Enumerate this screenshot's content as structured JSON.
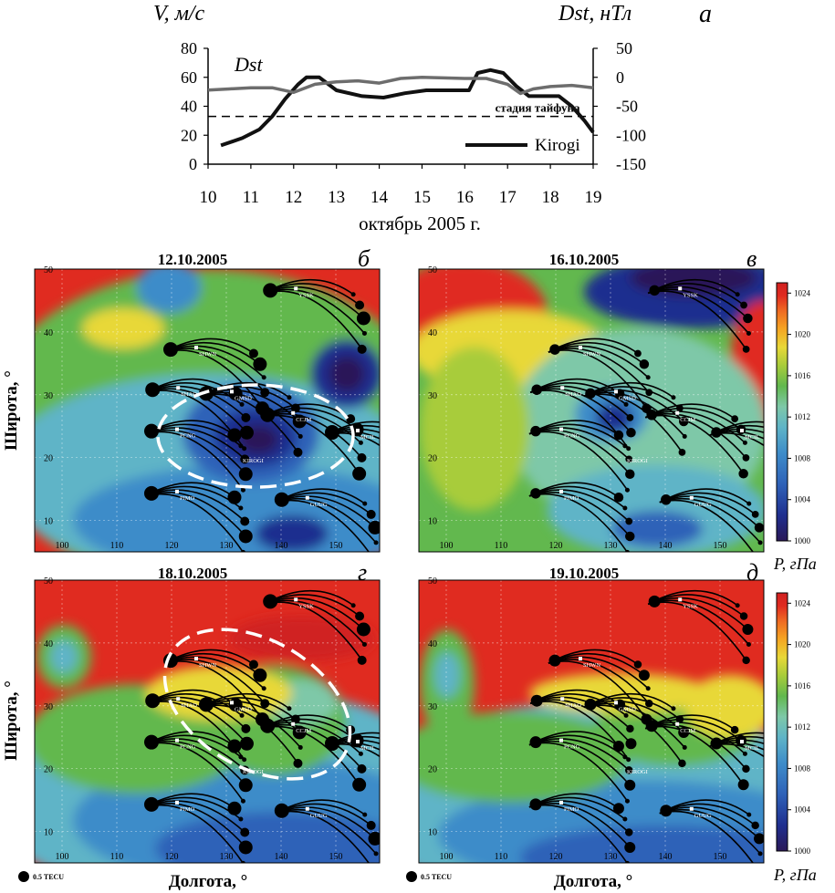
{
  "chart_data": [
    {
      "type": "line",
      "panel_letter": "а",
      "left_axis_title": "V, м/с",
      "right_axis_title": "Dst, нТл",
      "xlabel": "октябрь 2005 г.",
      "x_ticks": [
        "10",
        "11",
        "12",
        "13",
        "14",
        "15",
        "16",
        "17",
        "18",
        "19"
      ],
      "left_ticks": [
        "0",
        "20",
        "40",
        "60",
        "80"
      ],
      "right_ticks": [
        "-150",
        "-100",
        "-50",
        "0",
        "50"
      ],
      "xlim": [
        10,
        19
      ],
      "ylim_left": [
        0,
        80
      ],
      "ylim_right": [
        -150,
        50
      ],
      "threshold": {
        "label": "стадия тайфуна",
        "value": 33
      },
      "series": [
        {
          "name": "Kirogi",
          "axis": "left",
          "color": "#111111",
          "x": [
            10.3,
            10.8,
            11.2,
            11.5,
            11.8,
            12.1,
            12.3,
            12.6,
            13.0,
            13.6,
            14.1,
            14.6,
            15.1,
            15.6,
            16.1,
            16.3,
            16.6,
            16.9,
            17.2,
            17.5,
            17.8,
            18.2,
            18.5,
            18.8,
            19.0
          ],
          "y": [
            13,
            18,
            24,
            33,
            45,
            55,
            60,
            60,
            51,
            47,
            46,
            49,
            51,
            51,
            51,
            63,
            65,
            63,
            54,
            47,
            47,
            47,
            40,
            30,
            22
          ]
        },
        {
          "name": "Dst",
          "axis": "right",
          "color": "#6d6d6d",
          "x": [
            10.0,
            10.5,
            11.0,
            11.5,
            12.0,
            12.5,
            13.0,
            13.5,
            14.0,
            14.5,
            15.0,
            15.5,
            16.0,
            16.5,
            17.0,
            17.3,
            17.6,
            18.0,
            18.5,
            19.0
          ],
          "y": [
            -22,
            -20,
            -18,
            -18,
            -26,
            -12,
            -8,
            -6,
            -10,
            -2,
            0,
            -1,
            -2,
            -2,
            -12,
            -28,
            -20,
            -16,
            -14,
            -18
          ]
        }
      ],
      "labels": {
        "dst": "Dst",
        "legend": "Kirogi"
      }
    },
    {
      "type": "heatmap",
      "panel_letter": "б",
      "title": "12.10.2005",
      "stations": [
        "YSSK",
        "SHWN",
        "SHAO",
        "GMSD",
        "CCJM",
        "PCNG",
        "KIROGI",
        "MCIL",
        "PIMO",
        "GUUG"
      ]
    },
    {
      "type": "heatmap",
      "panel_letter": "в",
      "title": "16.10.2005",
      "stations": [
        "YSSK",
        "SHWN",
        "SHAO",
        "GMSD",
        "CCJM",
        "PCNG",
        "KIROGI",
        "MCIL",
        "PIMO",
        "GUUG"
      ]
    },
    {
      "type": "heatmap",
      "panel_letter": "г",
      "title": "18.10.2005",
      "stations": [
        "YSSK",
        "SHWN",
        "SHAO",
        "GMSD",
        "CCJM",
        "PCNG",
        "KIROGI",
        "MCIL",
        "PIMO",
        "GUUG"
      ]
    },
    {
      "type": "heatmap",
      "panel_letter": "д",
      "title": "19.10.2005",
      "stations": [
        "YSSK",
        "SHWN",
        "SHAO",
        "GMSD",
        "CCJM",
        "PCNG",
        "KIROGI",
        "MCIL",
        "PIMO",
        "GUUG"
      ]
    }
  ],
  "maps": {
    "xlabel": "Долгота, °",
    "ylabel": "Широта, °",
    "lon_ticks": [
      "100",
      "110",
      "120",
      "130",
      "140",
      "150"
    ],
    "lat_ticks": [
      "10",
      "20",
      "30",
      "40",
      "50"
    ],
    "lon_range": [
      95,
      158
    ],
    "lat_range": [
      5,
      50
    ],
    "colorbar": {
      "label": "P, гПа",
      "ticks": [
        "1000",
        "1004",
        "1008",
        "1012",
        "1016",
        "1020",
        "1024"
      ],
      "range": [
        1000,
        1025
      ],
      "colors": [
        "#2a1858",
        "#1f2f8f",
        "#2f62b8",
        "#3e8cc9",
        "#5fb4c7",
        "#7ec8a8",
        "#62b84e",
        "#a8cc3a",
        "#e8d838",
        "#f5a623",
        "#ef6b22",
        "#e02b20",
        "#d02020"
      ]
    },
    "legend_marker": "0.5 TECU"
  },
  "colors": {
    "kirogi": "#111111",
    "dst": "#6d6d6d",
    "ellipse": "#ffffff"
  }
}
